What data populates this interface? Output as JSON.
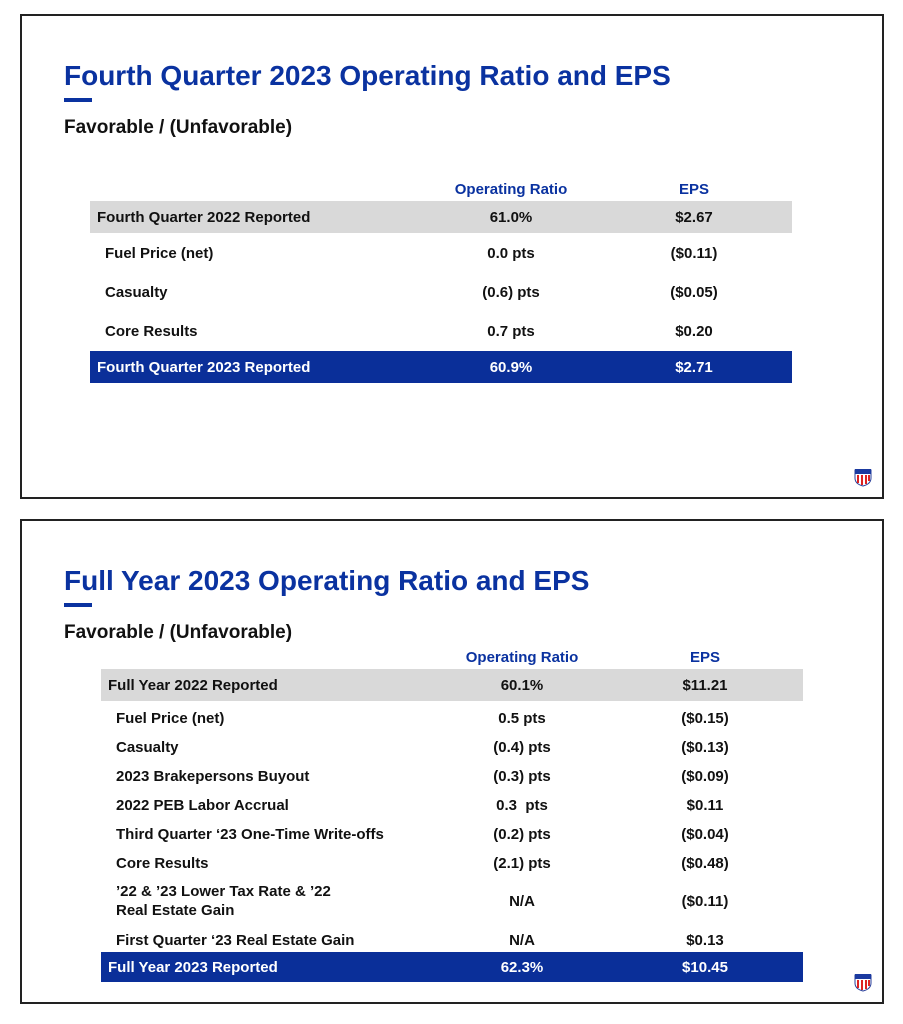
{
  "slides": [
    {
      "title": "Fourth Quarter 2023 Operating Ratio and EPS",
      "subtitle": "Favorable / (Unfavorable)",
      "columns": [
        "Operating Ratio",
        "EPS"
      ],
      "rows": [
        {
          "label": "Fourth Quarter 2022 Reported",
          "or": "61.0%",
          "eps": "$2.67",
          "style": "gray"
        },
        {
          "label": "Fuel Price (net)",
          "or": "0.0 pts",
          "eps": "($0.11)"
        },
        {
          "label": "Casualty",
          "or": "(0.6) pts",
          "eps": "($0.05)"
        },
        {
          "label": "Core Results",
          "or": "0.7 pts",
          "eps": "$0.20"
        },
        {
          "label": "Fourth Quarter 2023 Reported",
          "or": "60.9%",
          "eps": "$2.71",
          "style": "blue"
        }
      ],
      "logo": "union-pacific-shield-icon"
    },
    {
      "title": "Full Year 2023 Operating Ratio and EPS",
      "subtitle": "Favorable / (Unfavorable)",
      "columns": [
        "Operating Ratio",
        "EPS"
      ],
      "rows": [
        {
          "label": "Full Year 2022 Reported",
          "or": "60.1%",
          "eps": "$11.21",
          "style": "gray"
        },
        {
          "label": "Fuel Price (net)",
          "or": "0.5 pts",
          "eps": "($0.15)"
        },
        {
          "label": "Casualty",
          "or": "(0.4) pts",
          "eps": "($0.13)"
        },
        {
          "label": "2023 Brakepersons Buyout",
          "or": "(0.3) pts",
          "eps": "($0.09)"
        },
        {
          "label": "2022 PEB Labor Accrual",
          "or": "0.3  pts",
          "eps": "$0.11"
        },
        {
          "label": "Third Quarter ‘23 One-Time Write-offs",
          "or": "(0.2) pts",
          "eps": "($0.04)"
        },
        {
          "label": "Core Results",
          "or": "(2.1) pts",
          "eps": "($0.48)"
        },
        {
          "label": "’22 & ’23 Lower Tax Rate & ’22\n Real Estate Gain",
          "or": "N/A",
          "eps": "($0.11)"
        },
        {
          "label": "First Quarter ‘23 Real Estate Gain",
          "or": "N/A",
          "eps": "$0.13"
        },
        {
          "label": "Full Year 2023 Reported",
          "or": "62.3%",
          "eps": "$10.45",
          "style": "blue"
        }
      ],
      "logo": "union-pacific-shield-icon"
    }
  ],
  "colors": {
    "brand_blue": "#0a32a0",
    "highlight_gray": "#d9d9d9"
  }
}
